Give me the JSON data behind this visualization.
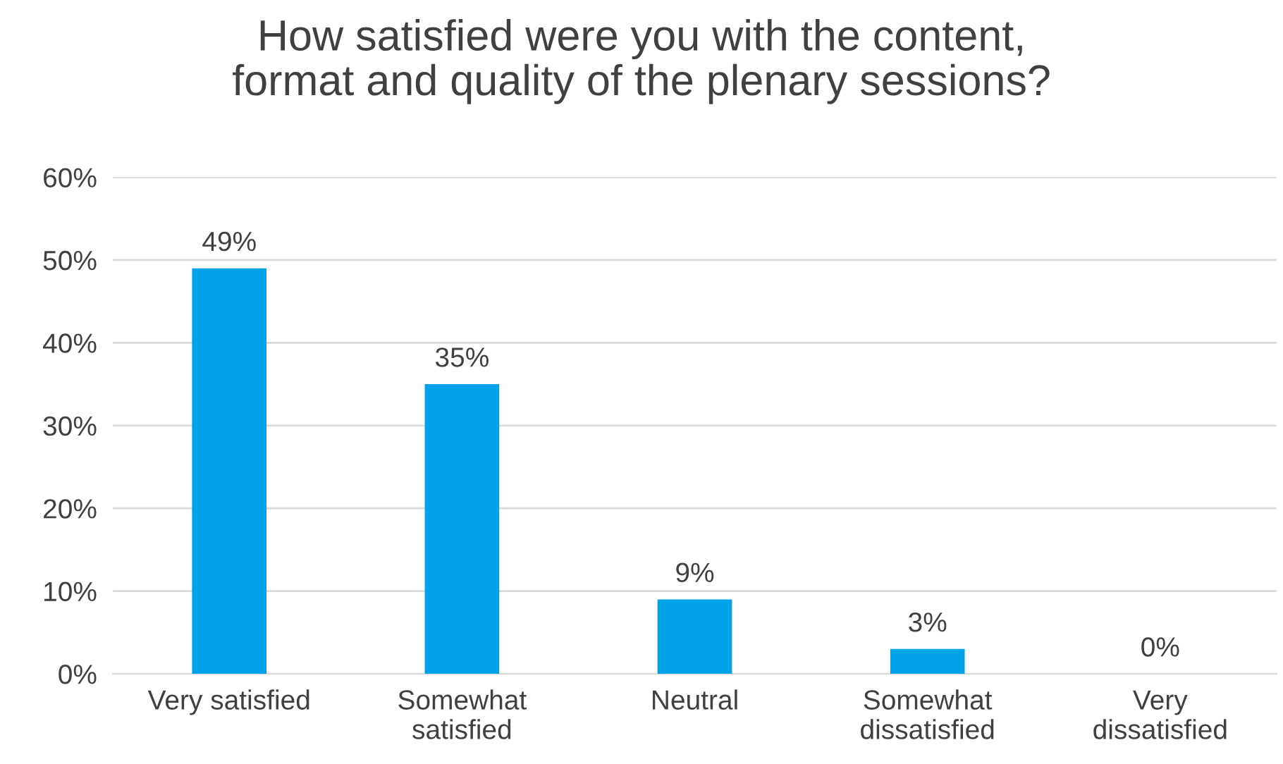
{
  "chart_data": {
    "type": "bar",
    "title": "How satisfied were you with the content,\nformat and quality of the plenary sessions?",
    "categories": [
      "Very satisfied",
      "Somewhat\nsatisfied",
      "Neutral",
      "Somewhat\ndissatisfied",
      "Very\ndissatisfied"
    ],
    "values": [
      49,
      35,
      9,
      3,
      0
    ],
    "value_labels": [
      "49%",
      "35%",
      "9%",
      "3%",
      "0%"
    ],
    "color": "#00a2e8",
    "ylim": [
      0,
      60
    ],
    "yticks": [
      {
        "value": 0,
        "label": "0%"
      },
      {
        "value": 10,
        "label": "10%"
      },
      {
        "value": 20,
        "label": "20%"
      },
      {
        "value": 30,
        "label": "30%"
      },
      {
        "value": 40,
        "label": "40%"
      },
      {
        "value": 50,
        "label": "50%"
      },
      {
        "value": 60,
        "label": "60%"
      }
    ],
    "grid": "y"
  }
}
